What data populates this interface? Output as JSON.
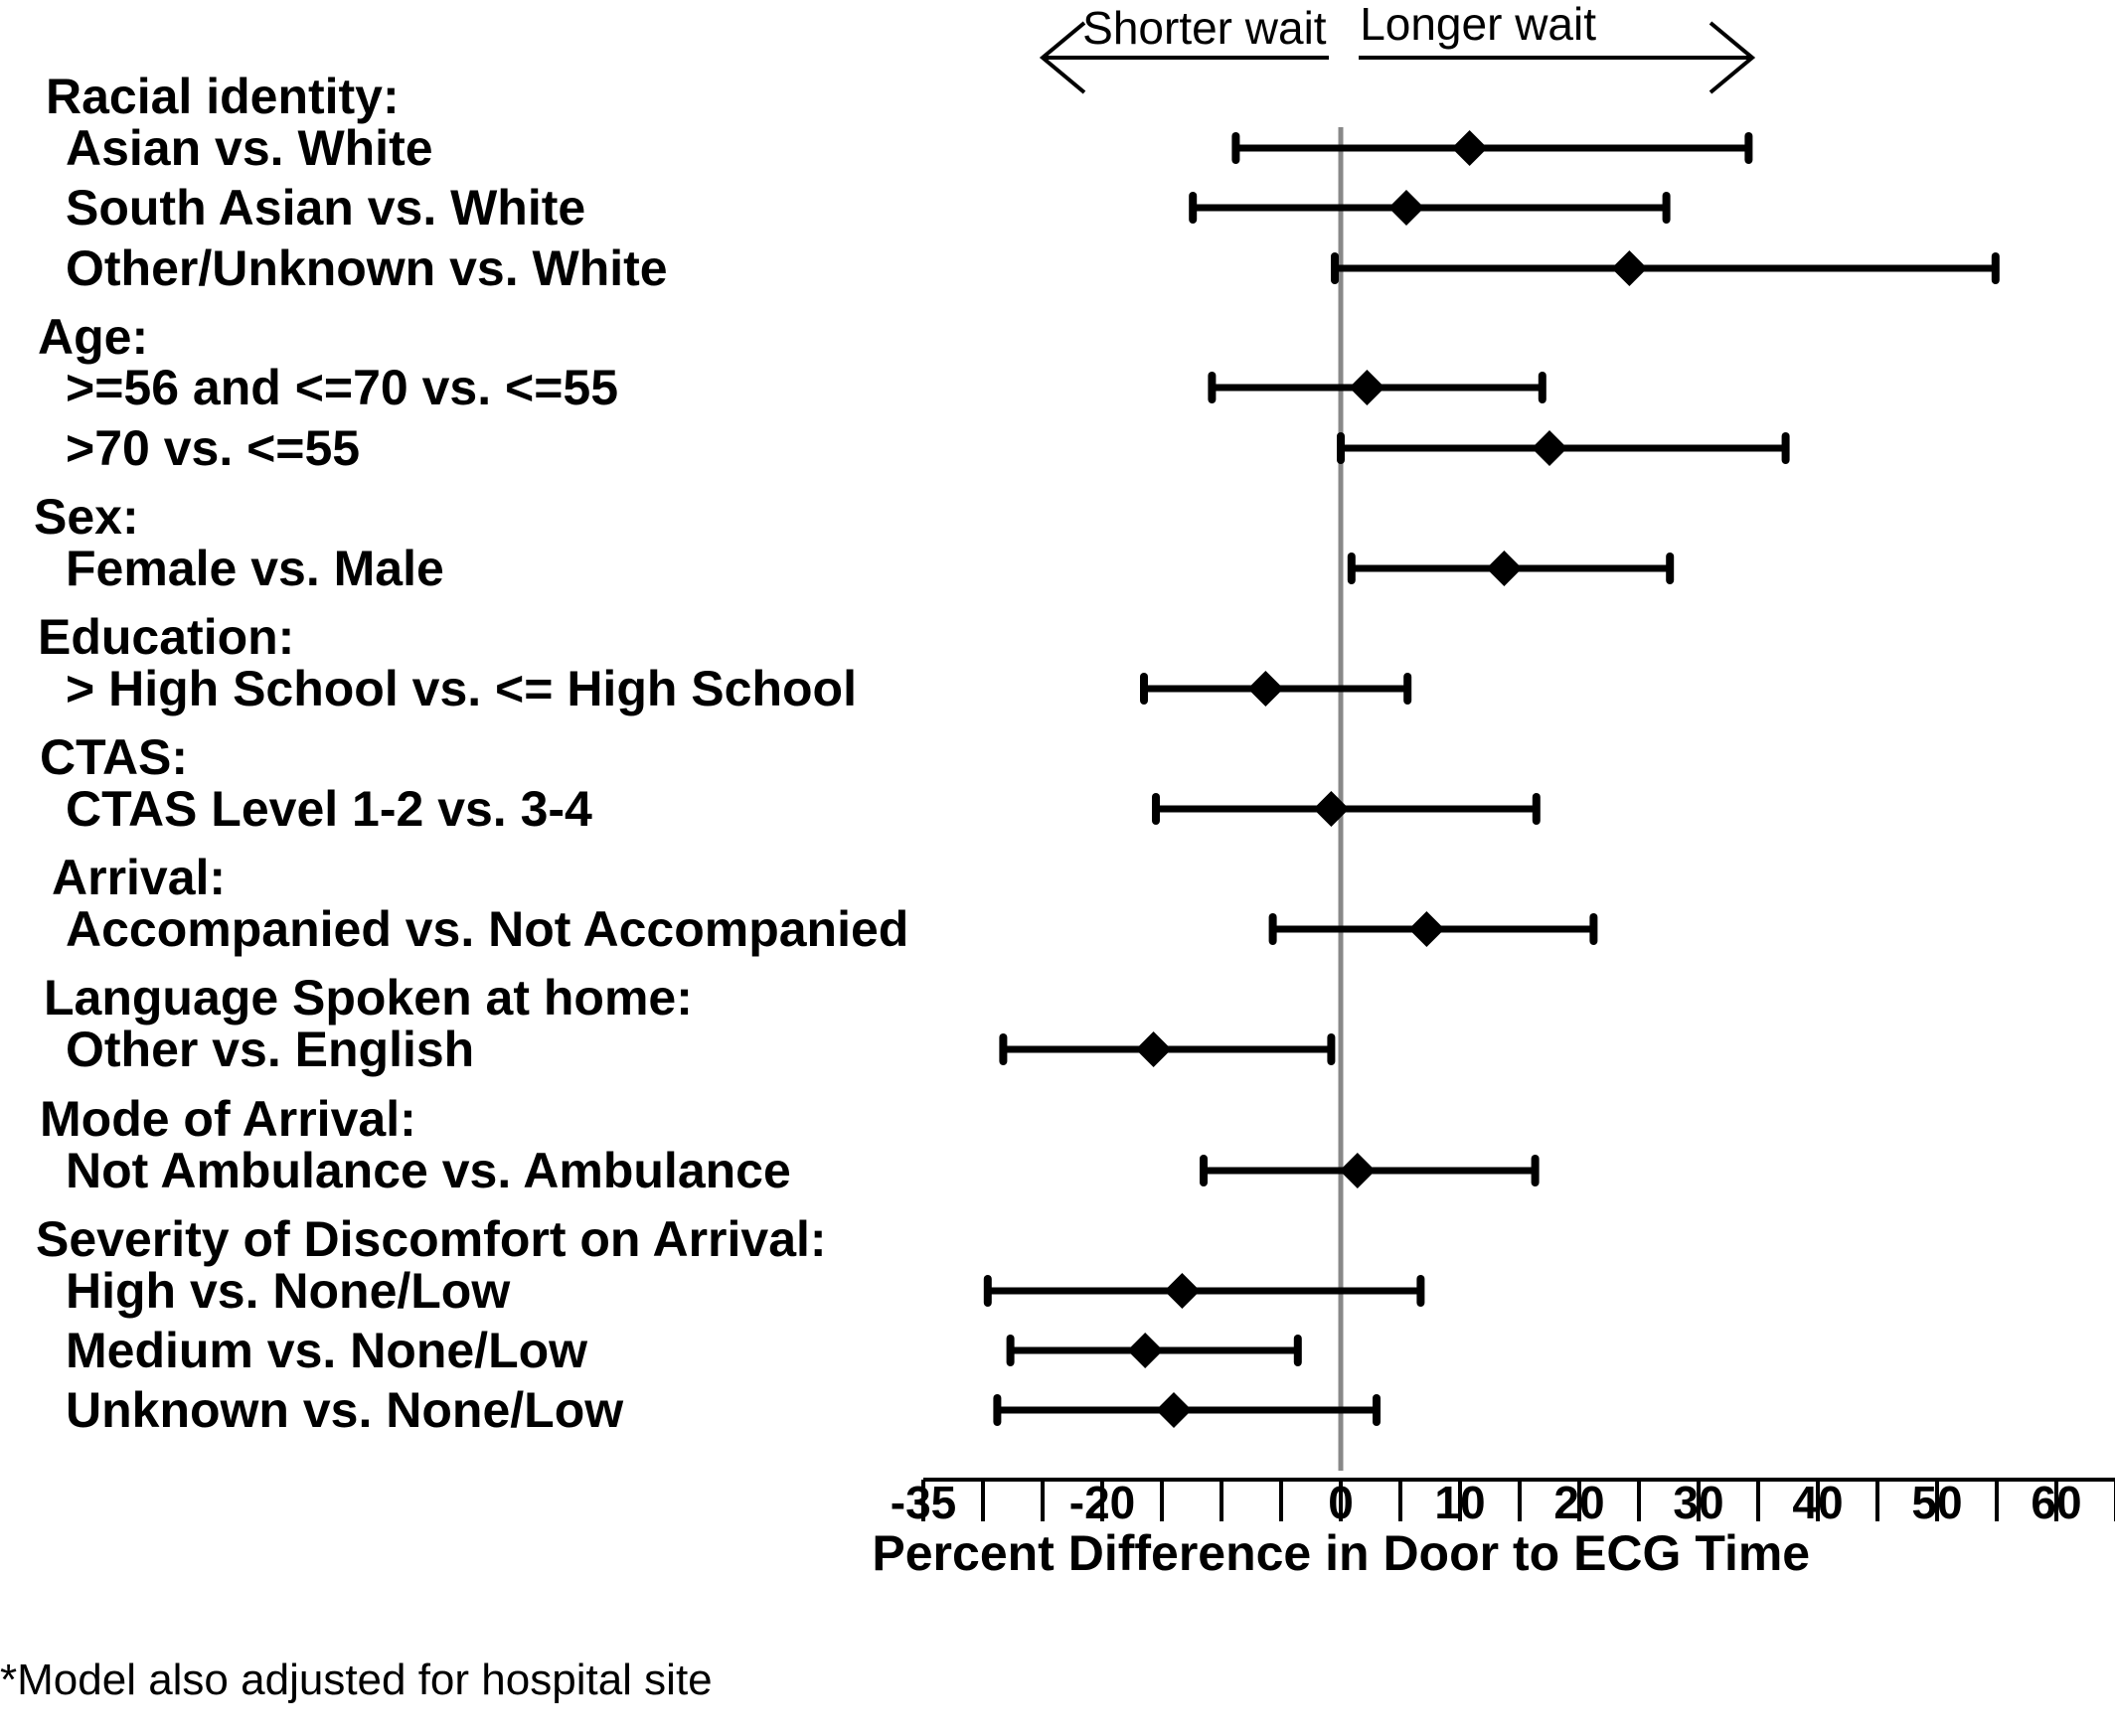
{
  "chart_data": {
    "type": "forest",
    "xlabel": "Percent Difference in Door to ECG Time",
    "direction_labels": {
      "left": "Shorter wait",
      "right": "Longer wait"
    },
    "reference_line": 0,
    "x_ticks": [
      -35,
      -30,
      -25,
      -20,
      -15,
      -10,
      -5,
      0,
      5,
      10,
      15,
      20,
      25,
      30,
      35,
      40,
      45,
      50,
      55,
      60,
      65
    ],
    "x_tick_labels": [
      {
        "value": -35,
        "label": "-35"
      },
      {
        "value": -20,
        "label": "-20"
      },
      {
        "value": 0,
        "label": "0"
      },
      {
        "value": 10,
        "label": "10"
      },
      {
        "value": 20,
        "label": "20"
      },
      {
        "value": 30,
        "label": "30"
      },
      {
        "value": 40,
        "label": "40"
      },
      {
        "value": 50,
        "label": "50"
      },
      {
        "value": 60,
        "label": "60"
      }
    ],
    "groups": [
      {
        "header": "Racial identity:",
        "rows": [
          {
            "label": "Asian vs. White",
            "estimate": 10.8,
            "lower": -8.8,
            "upper": 34.2
          },
          {
            "label": "South Asian vs. White",
            "estimate": 5.5,
            "lower": -12.4,
            "upper": 27.3
          },
          {
            "label": "Other/Unknown vs. White",
            "estimate": 24.2,
            "lower": -0.5,
            "upper": 54.9
          }
        ]
      },
      {
        "header": "Age:",
        "rows": [
          {
            "label": ">=56 and <=70 vs. <=55",
            "estimate": 2.2,
            "lower": -10.8,
            "upper": 16.9
          },
          {
            "label": ">70 vs. <=55",
            "estimate": 17.5,
            "lower": 0.0,
            "upper": 37.3
          }
        ]
      },
      {
        "header": "Sex:",
        "rows": [
          {
            "label": "Female vs. Male",
            "estimate": 13.7,
            "lower": 0.9,
            "upper": 27.6
          }
        ]
      },
      {
        "header": "Education:",
        "rows": [
          {
            "label": "> High School vs. <= High School",
            "estimate": -6.3,
            "lower": -16.5,
            "upper": 5.6
          }
        ]
      },
      {
        "header": "CTAS:",
        "rows": [
          {
            "label": "CTAS Level 1-2 vs. 3-4",
            "estimate": -0.8,
            "lower": -15.5,
            "upper": 16.4
          }
        ]
      },
      {
        "header": "Arrival:",
        "rows": [
          {
            "label": "Accompanied vs. Not Accompanied",
            "estimate": 7.2,
            "lower": -5.7,
            "upper": 21.2
          }
        ]
      },
      {
        "header": "Language Spoken at home:",
        "rows": [
          {
            "label": "Other vs. English",
            "estimate": -15.7,
            "lower": -28.3,
            "upper": -0.8
          }
        ]
      },
      {
        "header": "Mode of Arrival:",
        "rows": [
          {
            "label": "Not Ambulance vs. Ambulance",
            "estimate": 1.4,
            "lower": -11.5,
            "upper": 16.3
          }
        ]
      },
      {
        "header": "Severity of Discomfort on Arrival:",
        "rows": [
          {
            "label": "High vs. None/Low",
            "estimate": -13.3,
            "lower": -29.6,
            "upper": 6.7
          },
          {
            "label": "Medium vs. None/Low",
            "estimate": -16.4,
            "lower": -27.7,
            "upper": -3.6
          },
          {
            "label": "Unknown vs. None/Low",
            "estimate": -14.0,
            "lower": -28.8,
            "upper": 3.0
          }
        ]
      }
    ],
    "colors": {
      "marks": "#000000",
      "reference_line": "#888888",
      "text": "#000000"
    }
  },
  "footnote": "*Model also adjusted for hospital site"
}
